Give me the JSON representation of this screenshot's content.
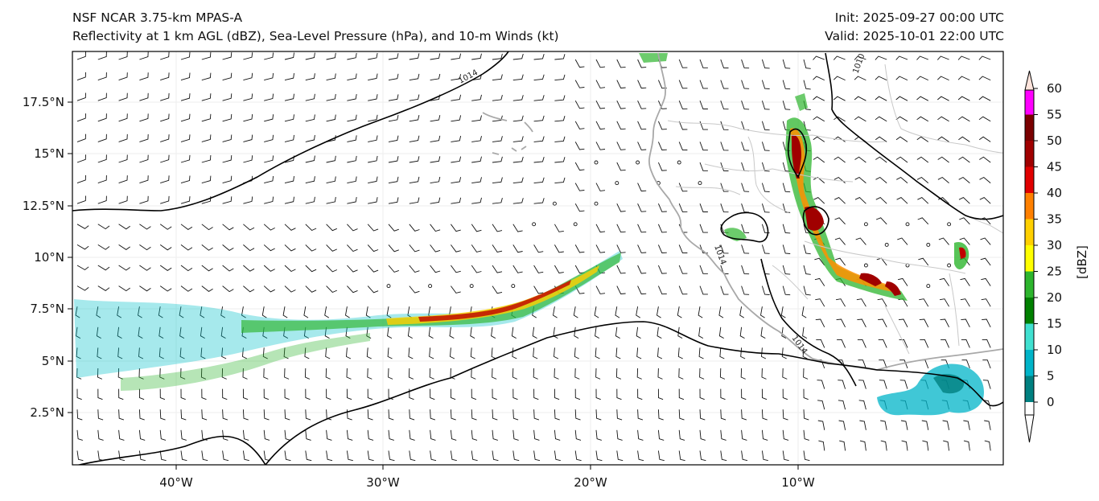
{
  "titles": {
    "left_line1": "NSF NCAR 3.75-km MPAS-A",
    "left_line2": "Reflectivity at 1 km AGL (dBZ), Sea-Level Pressure (hPa), and 10-m Winds (kt)",
    "init": "Init: 2025-09-27 00:00 UTC",
    "valid": "Valid: 2025-10-01 22:00 UTC"
  },
  "axes": {
    "lon_labels": [
      "40°W",
      "30°W",
      "20°W",
      "10°W"
    ],
    "lat_labels": [
      "17.5°N",
      "15°N",
      "12.5°N",
      "10°N",
      "7.5°N",
      "5°N",
      "2.5°N"
    ]
  },
  "isobars": [
    {
      "label": "1014",
      "value": 1014
    },
    {
      "label": "1010",
      "value": 1010
    },
    {
      "label": "1014",
      "value": 1014
    },
    {
      "label": "1014",
      "value": 1014
    }
  ],
  "colorbar": {
    "unit_label": "[dBZ]",
    "ticks": [
      "0",
      "5",
      "10",
      "15",
      "20",
      "25",
      "30",
      "35",
      "40",
      "45",
      "50",
      "55",
      "60"
    ],
    "colors": [
      "#008080",
      "#00b4c8",
      "#40e0d0",
      "#008000",
      "#2db52d",
      "#ffff00",
      "#ffd000",
      "#ff8000",
      "#e00000",
      "#a00000",
      "#7a0000",
      "#ff00ff",
      "#ffe4dc"
    ]
  }
}
